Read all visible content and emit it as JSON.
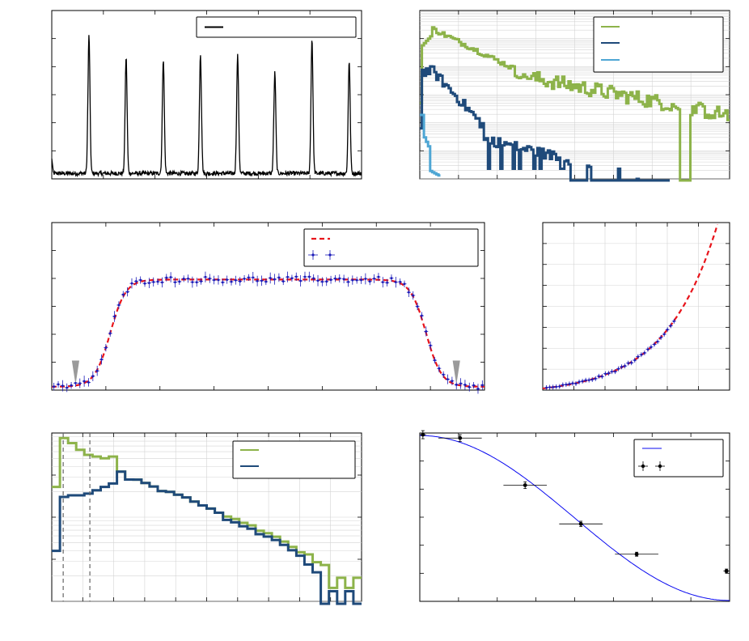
{
  "colors": {
    "black": "#000000",
    "green": "#8db34a",
    "navy": "#1f4a7a",
    "lightblue": "#4ea6d4",
    "red_dashed": "#e8141b",
    "data_blue": "#1a1ab8",
    "gray": "#9a9a9a",
    "fit_blue": "#0a0af0"
  },
  "chart_data": [
    {
      "type": "line",
      "panel": "top-left",
      "series": [
        {
          "color_key": "black",
          "peak_x": [
            0.12,
            0.24,
            0.36,
            0.48,
            0.6,
            0.72,
            0.84,
            0.96
          ],
          "peak_height": [
            0.82,
            0.69,
            0.68,
            0.71,
            0.7,
            0.6,
            0.8,
            0.67
          ],
          "baseline": 0.02
        }
      ],
      "xlim": [
        0,
        1
      ],
      "ylim": [
        0,
        1
      ],
      "legend_placement": "top-right",
      "grid": false
    },
    {
      "type": "line",
      "panel": "top-right",
      "yscale": "log",
      "series": [
        {
          "color_key": "green",
          "style": "step histogram",
          "start": 0.0,
          "peak": 0.05,
          "tail_end": 1.0
        },
        {
          "color_key": "navy",
          "style": "step histogram",
          "start": 0.0,
          "peak": 0.04,
          "tail_end": 0.8
        },
        {
          "color_key": "lightblue",
          "style": "step histogram",
          "start": 0.0,
          "peak": 0.02,
          "tail_end": 0.06
        }
      ],
      "legend_placement": "top-right",
      "grid": true
    },
    {
      "type": "scatter",
      "panel": "middle-left",
      "series": [
        {
          "color_key": "red_dashed",
          "style": "dashed fit"
        },
        {
          "color_key": "data_blue",
          "style": "points with error bars"
        }
      ],
      "plateau": 0.66,
      "baseline": 0.02,
      "rise": [
        0.08,
        0.18
      ],
      "fall": [
        0.81,
        0.92
      ],
      "markers": [
        0.055,
        0.935
      ],
      "legend_placement": "top-right",
      "grid": false
    },
    {
      "type": "scatter",
      "panel": "middle-right",
      "series": [
        {
          "color_key": "red_dashed",
          "style": "dashed exponential fit"
        },
        {
          "color_key": "data_blue",
          "style": "points with error bars"
        }
      ],
      "grid": true
    },
    {
      "type": "line",
      "panel": "bottom-left",
      "yscale": "log",
      "series": [
        {
          "color_key": "green",
          "style": "step histogram"
        },
        {
          "color_key": "navy",
          "style": "step histogram"
        }
      ],
      "vlines": [
        0.045,
        0.15
      ],
      "legend_placement": "top-right",
      "grid": true
    },
    {
      "type": "scatter",
      "panel": "bottom-right",
      "series": [
        {
          "color_key": "fit_blue",
          "style": "cosine-shaped fit"
        },
        {
          "color_key": "black",
          "style": "points with x and y error bars",
          "x": [
            0.01,
            0.13,
            0.34,
            0.52,
            0.7,
            0.99
          ],
          "y": [
            0.99,
            0.97,
            0.69,
            0.46,
            0.28,
            0.18
          ],
          "xerr": [
            0.01,
            0.07,
            0.07,
            0.07,
            0.07,
            0.01
          ],
          "yerr": [
            0.06,
            0.05,
            0.05,
            0.04,
            0.03,
            0.03
          ]
        }
      ],
      "legend_placement": "top-right",
      "grid": false
    }
  ]
}
